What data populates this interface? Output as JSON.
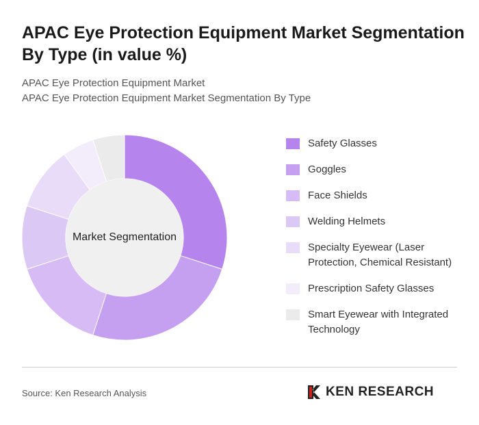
{
  "chart_data": {
    "type": "donut",
    "title": "APAC Eye Protection Equipment Market Segmentation By Type (in value %)",
    "subtitle": [
      "APAC Eye Protection Equipment Market",
      "APAC Eye Protection Equipment Market Segmentation By Type"
    ],
    "center_label": "Market Segmentation",
    "categories": [
      "Safety Glasses",
      "Goggles",
      "Face Shields",
      "Welding Helmets",
      "Specialty Eyewear (Laser Protection, Chemical Resistant)",
      "Prescription Safety Glasses",
      "Smart Eyewear with Integrated Technology"
    ],
    "values": [
      30,
      25,
      15,
      10,
      10,
      5,
      5
    ],
    "colors": [
      "#b584ec",
      "#c59ff0",
      "#d6bbf5",
      "#dcc8f5",
      "#e8dcf9",
      "#f2ecfb",
      "#ebebeb"
    ],
    "source": "Source: Ken Research Analysis",
    "logo": "KEN RESEARCH"
  }
}
